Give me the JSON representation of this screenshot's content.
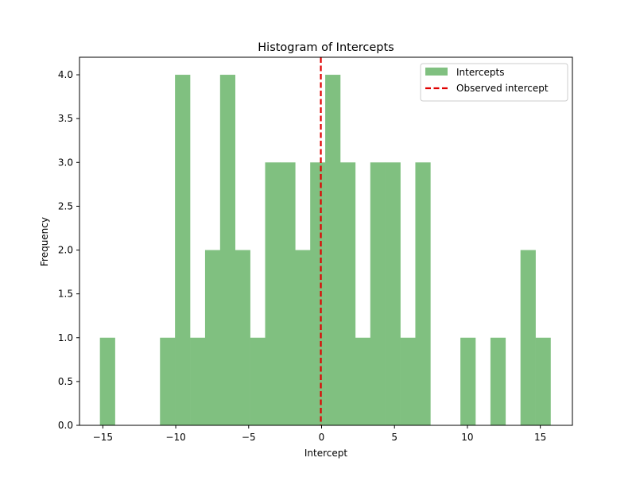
{
  "chart_data": {
    "type": "bar",
    "title": "Histogram of Intercepts",
    "xlabel": "Intercept",
    "ylabel": "Frequency",
    "xlim": [
      -16.6,
      17.2
    ],
    "ylim": [
      0,
      4.2
    ],
    "x_ticks": [
      -15,
      -10,
      -5,
      0,
      5,
      10,
      15
    ],
    "x_tick_labels": [
      "−15",
      "−10",
      "−5",
      "0",
      "5",
      "10",
      "15"
    ],
    "y_ticks": [
      0.0,
      0.5,
      1.0,
      1.5,
      2.0,
      2.5,
      3.0,
      3.5,
      4.0
    ],
    "y_tick_labels": [
      "0.0",
      "0.5",
      "1.0",
      "1.5",
      "2.0",
      "2.5",
      "3.0",
      "3.5",
      "4.0"
    ],
    "bin_start": -15.2,
    "bin_width": 1.03,
    "counts": [
      1,
      0,
      0,
      0,
      1,
      4,
      1,
      2,
      4,
      2,
      1,
      3,
      3,
      2,
      3,
      4,
      3,
      1,
      3,
      3,
      1,
      3,
      0,
      0,
      1,
      0,
      1,
      0,
      2,
      1
    ],
    "bar_color": "#80c080",
    "observed_intercept": -0.05,
    "observed_line_color": "#e00000",
    "grid": false,
    "legend_position": "top-right",
    "legend": {
      "histogram_label": "Intercepts",
      "line_label": "Observed intercept"
    }
  }
}
